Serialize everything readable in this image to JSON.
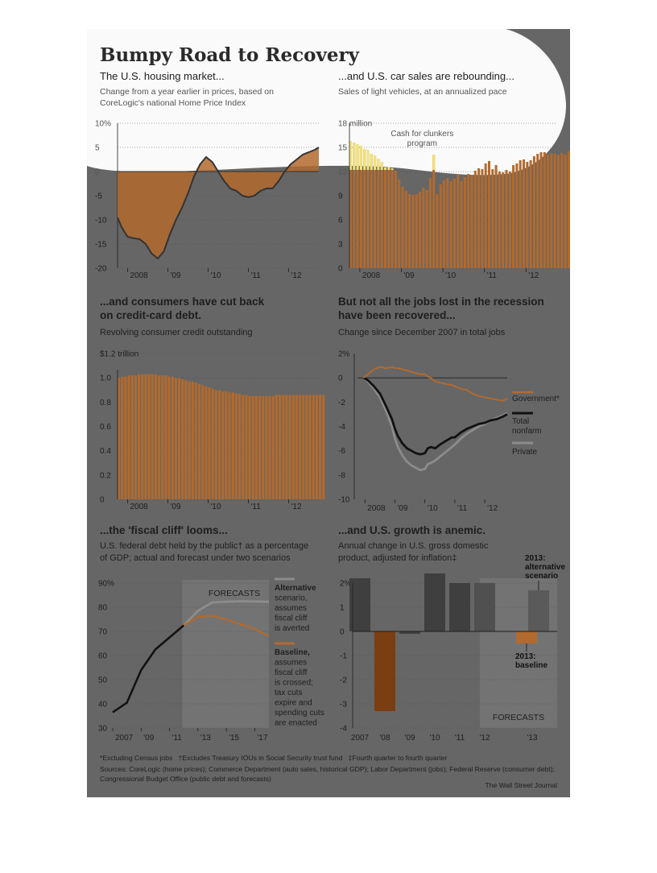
{
  "title": "Bumpy Road to Recovery",
  "credit": "The Wall Street Journal",
  "footnotes": "*Excluding Census jobs   †Excludes Treasury IOUs in Social Security trust fund   ‡Fourth quarter to fourth quarter",
  "sources_line1": "Sources: CoreLogic (home prices); Commerce Department (auto sales, historical GDP); Labor Department (jobs); Federal Reserve (consumer debt);",
  "sources_line2": "Congressional Budget Office (public debt and forecasts)",
  "colors": {
    "background": "#666666",
    "orange": "#b26a2e",
    "text": "#1e1e1e",
    "light_gray": "#8c8c8c",
    "yellow": "#f2e27a"
  },
  "chart_data": [
    {
      "type": "area",
      "heading": "The U.S. housing market...",
      "subtitle_lines": [
        "Change from a year earlier in prices, based on",
        "CoreLogic's national Home Price Index"
      ],
      "y_unit_label": "10%",
      "ylim": [
        -20,
        10
      ],
      "yticks": [
        10,
        5,
        0,
        -5,
        -10,
        -15,
        -20
      ],
      "ytick_labels": [
        "10%",
        "5",
        "0",
        "-5",
        "-10",
        "-15",
        "-20"
      ],
      "xlim": [
        2007.75,
        2012.75
      ],
      "xtick_labels": [
        {
          "x": 2008,
          "label": "2008"
        },
        {
          "x": 2009,
          "label": "'09"
        },
        {
          "x": 2010,
          "label": "'10"
        },
        {
          "x": 2011,
          "label": "'11"
        },
        {
          "x": 2012,
          "label": "'12"
        }
      ],
      "x": [
        2007.75,
        2007.85,
        2008.0,
        2008.15,
        2008.3,
        2008.45,
        2008.6,
        2008.75,
        2008.9,
        2009.05,
        2009.2,
        2009.35,
        2009.5,
        2009.65,
        2009.8,
        2009.95,
        2010.1,
        2010.25,
        2010.4,
        2010.55,
        2010.7,
        2010.85,
        2011.0,
        2011.15,
        2011.3,
        2011.45,
        2011.6,
        2011.75,
        2011.9,
        2012.05,
        2012.2,
        2012.35,
        2012.5,
        2012.65,
        2012.75
      ],
      "values": [
        -9.5,
        -11.5,
        -13.5,
        -13.8,
        -14.0,
        -15.0,
        -17.0,
        -18.0,
        -16.5,
        -13.0,
        -10.0,
        -7.5,
        -4.5,
        -1.0,
        1.5,
        3.0,
        2.0,
        0.0,
        -2.0,
        -3.5,
        -4.0,
        -5.0,
        -5.3,
        -5.0,
        -4.0,
        -3.5,
        -3.5,
        -2.0,
        0.0,
        1.5,
        2.5,
        3.5,
        4.0,
        4.5,
        5.0
      ]
    },
    {
      "type": "bar",
      "heading": "...and U.S. car sales are rebounding...",
      "subtitle": "Sales of light vehicles, at an annualized pace",
      "y_unit_label": "18 million",
      "ylim": [
        0,
        18
      ],
      "yticks": [
        18,
        15,
        12,
        9,
        6,
        3,
        0
      ],
      "ytick_labels": [
        "18 million",
        "15",
        "12",
        "9",
        "6",
        "3",
        "0"
      ],
      "xlim": [
        2007.75,
        2012.75
      ],
      "xtick_labels": [
        {
          "x": 2008,
          "label": "2008"
        },
        {
          "x": 2009,
          "label": "'09"
        },
        {
          "x": 2010,
          "label": "'10"
        },
        {
          "x": 2011,
          "label": "'11"
        },
        {
          "x": 2012,
          "label": "'12"
        }
      ],
      "annotation": [
        "Cash for clunkers",
        "program"
      ],
      "annotation_x": 2009.5,
      "start_month": "2007-10",
      "values": [
        15.8,
        15.6,
        15.4,
        15.2,
        14.8,
        14.7,
        14.2,
        14.0,
        13.6,
        13.2,
        12.5,
        12.6,
        12.4,
        12.1,
        11.0,
        10.1,
        9.6,
        9.2,
        9.1,
        9.2,
        9.5,
        10.0,
        9.7,
        11.2,
        14.1,
        9.2,
        10.4,
        10.9,
        11.2,
        10.8,
        11.1,
        11.6,
        10.8,
        11.3,
        11.7,
        11.6,
        12.1,
        12.4,
        12.3,
        13.0,
        13.3,
        12.3,
        12.8,
        12.0,
        11.9,
        12.2,
        12.0,
        12.8,
        13.0,
        13.4,
        13.5,
        13.2,
        13.4,
        13.9,
        14.2,
        14.4,
        14.4,
        14.1,
        14.3,
        14.2,
        14.1,
        14.3,
        14.1,
        14.5,
        14.9,
        14.5
      ],
      "highlight_indices": [
        0,
        1,
        2,
        3,
        4,
        5,
        6,
        7,
        8,
        9,
        10,
        11,
        12,
        21,
        22,
        23,
        24
      ]
    },
    {
      "type": "bar",
      "heading_lines": [
        "...and consumers have cut back",
        "on credit-card debt."
      ],
      "subtitle": "Revolving consumer credit outstanding",
      "y_unit_label": "$1.2 trillion",
      "ylim": [
        0,
        1.2
      ],
      "yticks": [
        1.2,
        1.0,
        0.8,
        0.6,
        0.4,
        0.2,
        0
      ],
      "ytick_labels": [
        "$1.2 trillion",
        "1.0",
        "0.8",
        "0.6",
        "0.4",
        "0.2",
        "0"
      ],
      "xlim": [
        2007.75,
        2012.75
      ],
      "xtick_labels": [
        {
          "x": 2008,
          "label": "2008"
        },
        {
          "x": 2009,
          "label": "'09"
        },
        {
          "x": 2010,
          "label": "'10"
        },
        {
          "x": 2011,
          "label": "'11"
        },
        {
          "x": 2012,
          "label": "'12"
        }
      ],
      "start_month": "2007-10",
      "values": [
        1.0,
        1.01,
        1.01,
        1.02,
        1.02,
        1.02,
        1.03,
        1.03,
        1.03,
        1.03,
        1.03,
        1.03,
        1.02,
        1.02,
        1.02,
        1.01,
        1.01,
        1.0,
        1.0,
        0.99,
        0.98,
        0.97,
        0.97,
        0.96,
        0.95,
        0.94,
        0.93,
        0.92,
        0.91,
        0.9,
        0.9,
        0.89,
        0.89,
        0.88,
        0.88,
        0.87,
        0.87,
        0.86,
        0.86,
        0.85,
        0.85,
        0.85,
        0.85,
        0.85,
        0.85,
        0.85,
        0.85,
        0.86,
        0.86,
        0.86,
        0.86,
        0.86,
        0.86,
        0.86,
        0.86,
        0.86,
        0.86,
        0.86,
        0.86,
        0.86,
        0.86,
        0.86
      ]
    },
    {
      "type": "line",
      "heading_lines": [
        "But not all the jobs lost in the recession",
        "have been recovered..."
      ],
      "subtitle": "Change since December 2007 in total jobs",
      "y_unit_label": "2%",
      "ylim": [
        -10,
        2
      ],
      "yticks": [
        2,
        0,
        -2,
        -4,
        -6,
        -8,
        -10
      ],
      "ytick_labels": [
        "2%",
        "0",
        "-2",
        "-4",
        "-6",
        "-8",
        "-10"
      ],
      "xlim": [
        2007.75,
        2012.75
      ],
      "xtick_labels": [
        {
          "x": 2008,
          "label": "2008"
        },
        {
          "x": 2009,
          "label": "'09"
        },
        {
          "x": 2010,
          "label": "'10"
        },
        {
          "x": 2011,
          "label": "'11"
        },
        {
          "x": 2012,
          "label": "'12"
        }
      ],
      "x": [
        2007.95,
        2008.1,
        2008.3,
        2008.5,
        2008.7,
        2008.9,
        2009.0,
        2009.1,
        2009.25,
        2009.4,
        2009.55,
        2009.7,
        2009.85,
        2010.0,
        2010.1,
        2010.2,
        2010.35,
        2010.5,
        2010.7,
        2010.9,
        2011.0,
        2011.2,
        2011.4,
        2011.6,
        2011.8,
        2012.0,
        2012.2,
        2012.4,
        2012.6,
        2012.75
      ],
      "series": [
        {
          "name": "Government*",
          "values": [
            0,
            0.3,
            0.7,
            0.9,
            0.8,
            0.9,
            0.8,
            0.8,
            0.7,
            0.6,
            0.5,
            0.4,
            0.3,
            0.3,
            0.1,
            0.0,
            -0.3,
            -0.4,
            -0.5,
            -0.6,
            -0.7,
            -0.9,
            -1.0,
            -1.3,
            -1.5,
            -1.6,
            -1.7,
            -1.8,
            -1.9,
            -1.7
          ]
        },
        {
          "name": "Total nonfarm",
          "values": [
            0,
            -0.2,
            -0.7,
            -1.3,
            -2.3,
            -3.4,
            -4.2,
            -4.8,
            -5.4,
            -5.8,
            -6.0,
            -6.2,
            -6.3,
            -6.2,
            -5.8,
            -5.7,
            -5.8,
            -5.5,
            -5.2,
            -4.9,
            -4.9,
            -4.5,
            -4.2,
            -4.0,
            -3.8,
            -3.7,
            -3.5,
            -3.4,
            -3.2,
            -3.0
          ]
        },
        {
          "name": "Private",
          "values": [
            0,
            -0.3,
            -0.9,
            -1.6,
            -2.7,
            -4.0,
            -5.0,
            -5.7,
            -6.4,
            -6.9,
            -7.2,
            -7.4,
            -7.6,
            -7.5,
            -7.1,
            -7.0,
            -6.8,
            -6.5,
            -6.1,
            -5.7,
            -5.5,
            -5.0,
            -4.6,
            -4.3,
            -4.0,
            -3.8,
            -3.5,
            -3.3,
            -3.1,
            -2.9
          ]
        }
      ]
    },
    {
      "type": "line",
      "heading": "...the 'fiscal cliff' looms...",
      "subtitle_lines": [
        "U.S. federal debt held by the public† as a percentage",
        "of GDP; actual and forecast under two scenarios"
      ],
      "y_unit_label": "90%",
      "ylim": [
        30,
        90
      ],
      "yticks": [
        90,
        80,
        70,
        60,
        50,
        40,
        30
      ],
      "ytick_labels": [
        "90%",
        "80",
        "70",
        "60",
        "50",
        "40",
        "30"
      ],
      "xlim": [
        2007,
        2018
      ],
      "xtick_labels": [
        {
          "x": 2007,
          "label": "2007"
        },
        {
          "x": 2009,
          "label": "'09"
        },
        {
          "x": 2011,
          "label": "'11"
        },
        {
          "x": 2013,
          "label": "'13"
        },
        {
          "x": 2015,
          "label": "'15"
        },
        {
          "x": 2017,
          "label": "'17"
        }
      ],
      "forecast_label": "FORECASTS",
      "forecast_range": [
        2012,
        2018
      ],
      "actual": {
        "x": [
          2007,
          2008,
          2009,
          2010,
          2011,
          2012
        ],
        "values": [
          36.5,
          40.5,
          54,
          62.5,
          67.5,
          72.5
        ]
      },
      "series": [
        {
          "name": "Alternative scenario, assumes fiscal cliff is averted",
          "x": [
            2012,
            2013,
            2014,
            2015,
            2016,
            2017,
            2018
          ],
          "values": [
            72.5,
            78.5,
            82,
            82.3,
            82.5,
            82.4,
            82.3
          ]
        },
        {
          "name": "Baseline, assumes fiscal cliff is crossed; tax cuts expire and spending cuts are enacted",
          "x": [
            2012,
            2013,
            2014,
            2015,
            2016,
            2017,
            2018
          ],
          "values": [
            72.5,
            76,
            76.5,
            75,
            73,
            71,
            68
          ]
        }
      ],
      "legend_alt": [
        "Alternative",
        "scenario,",
        "assumes",
        "fiscal cliff",
        "is averted"
      ],
      "legend_base": [
        "Baseline,",
        "assumes",
        "fiscal cliff",
        "is crossed;",
        "tax cuts",
        "expire and",
        "spending cuts",
        "are enacted"
      ]
    },
    {
      "type": "bar",
      "heading": "...and U.S. growth is anemic.",
      "subtitle_lines": [
        "Annual change in U.S. gross domestic",
        "product, adjusted for inflation‡"
      ],
      "y_unit_label": "2%",
      "ylim": [
        -4,
        2.5
      ],
      "yticks": [
        2,
        1,
        0,
        -1,
        -2,
        -3,
        -4
      ],
      "ytick_labels": [
        "2%",
        "1",
        "0",
        "-1",
        "-2",
        "-3",
        "-4"
      ],
      "categories": [
        "2007",
        "'08",
        "'09",
        "'10",
        "'11",
        "'12",
        "2013: baseline",
        "2013: alternative scenario"
      ],
      "xtick_labels": [
        "2007",
        "'08",
        "'09",
        "'10",
        "'11",
        "'12",
        "'13"
      ],
      "values": [
        2.2,
        -3.3,
        -0.1,
        2.4,
        2.0,
        2.0,
        -0.5,
        1.7
      ],
      "forecast_label": "FORECASTS",
      "label_alt": [
        "2013:",
        "alternative",
        "scenario"
      ],
      "label_base": [
        "2013:",
        "baseline"
      ]
    }
  ]
}
